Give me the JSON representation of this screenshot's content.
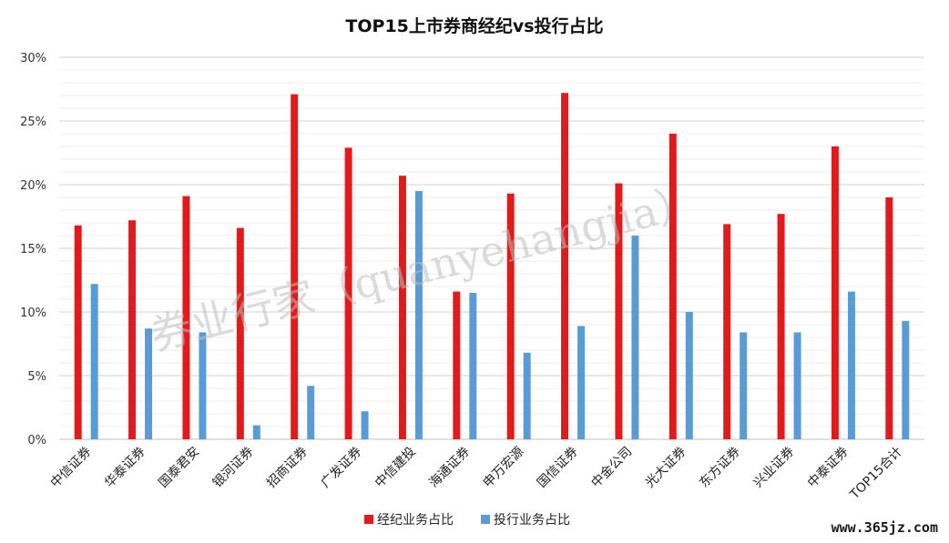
{
  "chart_data": {
    "type": "bar",
    "title": "TOP15上市券商经纪vs投行占比",
    "categories": [
      "中信证券",
      "华泰证券",
      "国泰君安",
      "银河证券",
      "招商证券",
      "广发证券",
      "中信建投",
      "海通证券",
      "申万宏源",
      "国信证券",
      "中金公司",
      "光大证券",
      "东方证券",
      "兴业证券",
      "中泰证券",
      "TOP15合计"
    ],
    "series": [
      {
        "name": "经纪业务占比",
        "color": "#e31a1c",
        "values": [
          16.8,
          17.2,
          19.1,
          16.6,
          27.1,
          22.9,
          20.7,
          11.6,
          19.3,
          27.2,
          20.1,
          24.0,
          16.9,
          17.7,
          23.0,
          19.0
        ]
      },
      {
        "name": "投行业务占比",
        "color": "#5b9bd5",
        "values": [
          12.2,
          8.7,
          8.4,
          1.1,
          4.2,
          2.2,
          19.5,
          11.5,
          6.8,
          8.9,
          16.0,
          10.0,
          8.4,
          8.4,
          11.6,
          9.3
        ]
      }
    ],
    "ylim": [
      0,
      30
    ],
    "yticks": [
      "0%",
      "5%",
      "10%",
      "15%",
      "20%",
      "25%",
      "30%"
    ],
    "grid": true,
    "legend": "bottom"
  },
  "watermark": {
    "diagonal": "券业行家（quanyehangjia）",
    "footer": "www.365jz.com"
  }
}
